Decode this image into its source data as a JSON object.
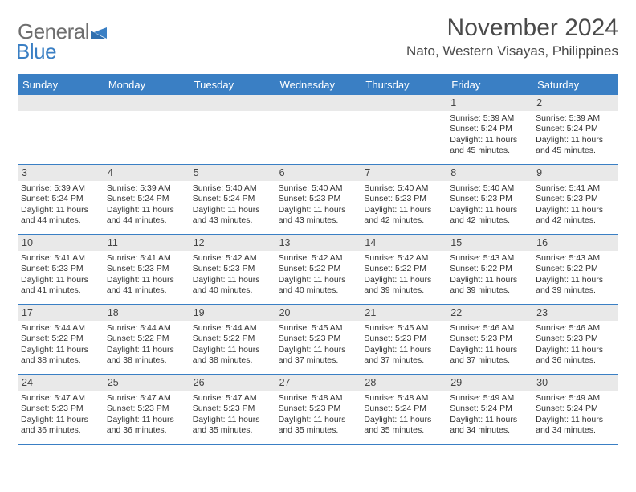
{
  "logo": {
    "general": "General",
    "blue": "Blue"
  },
  "title": "November 2024",
  "location": "Nato, Western Visayas, Philippines",
  "colors": {
    "accent": "#3a7fc4",
    "header_text": "#6e6e6e",
    "day_row_bg": "#e9e9e9",
    "text": "#333333",
    "background": "#ffffff"
  },
  "day_names": [
    "Sunday",
    "Monday",
    "Tuesday",
    "Wednesday",
    "Thursday",
    "Friday",
    "Saturday"
  ],
  "weeks": [
    [
      null,
      null,
      null,
      null,
      null,
      {
        "n": 1,
        "sunrise": "Sunrise: 5:39 AM",
        "sunset": "Sunset: 5:24 PM",
        "daylight1": "Daylight: 11 hours",
        "daylight2": "and 45 minutes."
      },
      {
        "n": 2,
        "sunrise": "Sunrise: 5:39 AM",
        "sunset": "Sunset: 5:24 PM",
        "daylight1": "Daylight: 11 hours",
        "daylight2": "and 45 minutes."
      }
    ],
    [
      {
        "n": 3,
        "sunrise": "Sunrise: 5:39 AM",
        "sunset": "Sunset: 5:24 PM",
        "daylight1": "Daylight: 11 hours",
        "daylight2": "and 44 minutes."
      },
      {
        "n": 4,
        "sunrise": "Sunrise: 5:39 AM",
        "sunset": "Sunset: 5:24 PM",
        "daylight1": "Daylight: 11 hours",
        "daylight2": "and 44 minutes."
      },
      {
        "n": 5,
        "sunrise": "Sunrise: 5:40 AM",
        "sunset": "Sunset: 5:24 PM",
        "daylight1": "Daylight: 11 hours",
        "daylight2": "and 43 minutes."
      },
      {
        "n": 6,
        "sunrise": "Sunrise: 5:40 AM",
        "sunset": "Sunset: 5:23 PM",
        "daylight1": "Daylight: 11 hours",
        "daylight2": "and 43 minutes."
      },
      {
        "n": 7,
        "sunrise": "Sunrise: 5:40 AM",
        "sunset": "Sunset: 5:23 PM",
        "daylight1": "Daylight: 11 hours",
        "daylight2": "and 42 minutes."
      },
      {
        "n": 8,
        "sunrise": "Sunrise: 5:40 AM",
        "sunset": "Sunset: 5:23 PM",
        "daylight1": "Daylight: 11 hours",
        "daylight2": "and 42 minutes."
      },
      {
        "n": 9,
        "sunrise": "Sunrise: 5:41 AM",
        "sunset": "Sunset: 5:23 PM",
        "daylight1": "Daylight: 11 hours",
        "daylight2": "and 42 minutes."
      }
    ],
    [
      {
        "n": 10,
        "sunrise": "Sunrise: 5:41 AM",
        "sunset": "Sunset: 5:23 PM",
        "daylight1": "Daylight: 11 hours",
        "daylight2": "and 41 minutes."
      },
      {
        "n": 11,
        "sunrise": "Sunrise: 5:41 AM",
        "sunset": "Sunset: 5:23 PM",
        "daylight1": "Daylight: 11 hours",
        "daylight2": "and 41 minutes."
      },
      {
        "n": 12,
        "sunrise": "Sunrise: 5:42 AM",
        "sunset": "Sunset: 5:23 PM",
        "daylight1": "Daylight: 11 hours",
        "daylight2": "and 40 minutes."
      },
      {
        "n": 13,
        "sunrise": "Sunrise: 5:42 AM",
        "sunset": "Sunset: 5:22 PM",
        "daylight1": "Daylight: 11 hours",
        "daylight2": "and 40 minutes."
      },
      {
        "n": 14,
        "sunrise": "Sunrise: 5:42 AM",
        "sunset": "Sunset: 5:22 PM",
        "daylight1": "Daylight: 11 hours",
        "daylight2": "and 39 minutes."
      },
      {
        "n": 15,
        "sunrise": "Sunrise: 5:43 AM",
        "sunset": "Sunset: 5:22 PM",
        "daylight1": "Daylight: 11 hours",
        "daylight2": "and 39 minutes."
      },
      {
        "n": 16,
        "sunrise": "Sunrise: 5:43 AM",
        "sunset": "Sunset: 5:22 PM",
        "daylight1": "Daylight: 11 hours",
        "daylight2": "and 39 minutes."
      }
    ],
    [
      {
        "n": 17,
        "sunrise": "Sunrise: 5:44 AM",
        "sunset": "Sunset: 5:22 PM",
        "daylight1": "Daylight: 11 hours",
        "daylight2": "and 38 minutes."
      },
      {
        "n": 18,
        "sunrise": "Sunrise: 5:44 AM",
        "sunset": "Sunset: 5:22 PM",
        "daylight1": "Daylight: 11 hours",
        "daylight2": "and 38 minutes."
      },
      {
        "n": 19,
        "sunrise": "Sunrise: 5:44 AM",
        "sunset": "Sunset: 5:22 PM",
        "daylight1": "Daylight: 11 hours",
        "daylight2": "and 38 minutes."
      },
      {
        "n": 20,
        "sunrise": "Sunrise: 5:45 AM",
        "sunset": "Sunset: 5:23 PM",
        "daylight1": "Daylight: 11 hours",
        "daylight2": "and 37 minutes."
      },
      {
        "n": 21,
        "sunrise": "Sunrise: 5:45 AM",
        "sunset": "Sunset: 5:23 PM",
        "daylight1": "Daylight: 11 hours",
        "daylight2": "and 37 minutes."
      },
      {
        "n": 22,
        "sunrise": "Sunrise: 5:46 AM",
        "sunset": "Sunset: 5:23 PM",
        "daylight1": "Daylight: 11 hours",
        "daylight2": "and 37 minutes."
      },
      {
        "n": 23,
        "sunrise": "Sunrise: 5:46 AM",
        "sunset": "Sunset: 5:23 PM",
        "daylight1": "Daylight: 11 hours",
        "daylight2": "and 36 minutes."
      }
    ],
    [
      {
        "n": 24,
        "sunrise": "Sunrise: 5:47 AM",
        "sunset": "Sunset: 5:23 PM",
        "daylight1": "Daylight: 11 hours",
        "daylight2": "and 36 minutes."
      },
      {
        "n": 25,
        "sunrise": "Sunrise: 5:47 AM",
        "sunset": "Sunset: 5:23 PM",
        "daylight1": "Daylight: 11 hours",
        "daylight2": "and 36 minutes."
      },
      {
        "n": 26,
        "sunrise": "Sunrise: 5:47 AM",
        "sunset": "Sunset: 5:23 PM",
        "daylight1": "Daylight: 11 hours",
        "daylight2": "and 35 minutes."
      },
      {
        "n": 27,
        "sunrise": "Sunrise: 5:48 AM",
        "sunset": "Sunset: 5:23 PM",
        "daylight1": "Daylight: 11 hours",
        "daylight2": "and 35 minutes."
      },
      {
        "n": 28,
        "sunrise": "Sunrise: 5:48 AM",
        "sunset": "Sunset: 5:24 PM",
        "daylight1": "Daylight: 11 hours",
        "daylight2": "and 35 minutes."
      },
      {
        "n": 29,
        "sunrise": "Sunrise: 5:49 AM",
        "sunset": "Sunset: 5:24 PM",
        "daylight1": "Daylight: 11 hours",
        "daylight2": "and 34 minutes."
      },
      {
        "n": 30,
        "sunrise": "Sunrise: 5:49 AM",
        "sunset": "Sunset: 5:24 PM",
        "daylight1": "Daylight: 11 hours",
        "daylight2": "and 34 minutes."
      }
    ]
  ]
}
